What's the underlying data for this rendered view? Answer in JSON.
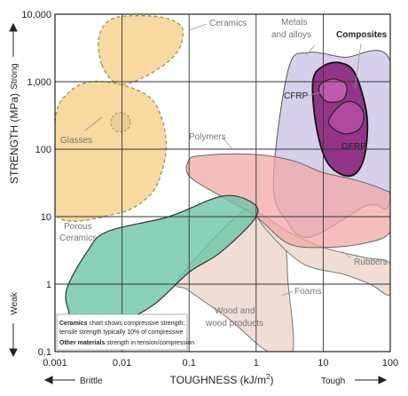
{
  "chart_data": {
    "type": "area",
    "title": "",
    "xlabel": "TOUGHNESS (kJ/m²)",
    "xlabel_main": "TOUGHNESS (kJ/m",
    "xlabel_sup": "2",
    "xlabel_end": ")",
    "ylabel": "STRENGTH (MPa)",
    "x_scale": "log",
    "y_scale": "log",
    "xlim": [
      0.001,
      100
    ],
    "ylim": [
      0.1,
      10000
    ],
    "grid": true,
    "x_ticks": [
      "0.001",
      "0.01",
      "0.1",
      "1",
      "10",
      "100"
    ],
    "y_ticks": [
      "0.1",
      "1",
      "10",
      "100",
      "1,000",
      "10,000"
    ],
    "x_extremes": {
      "low": "Brittle",
      "high": "Tough"
    },
    "y_extremes": {
      "low": "Weak",
      "high": "Strong"
    },
    "regions": [
      {
        "label": "Ceramics",
        "color": "#f8d9a0",
        "outline": "dashed",
        "points": [
          [
            0.005,
            1800
          ],
          [
            0.0045,
            4500
          ],
          [
            0.007,
            8500
          ],
          [
            0.02,
            9500
          ],
          [
            0.05,
            8500
          ],
          [
            0.08,
            6000
          ],
          [
            0.07,
            3000
          ],
          [
            0.04,
            1700
          ],
          [
            0.015,
            1000
          ],
          [
            0.008,
            950
          ]
        ]
      },
      {
        "label": "Glasses",
        "color": "#f8d9a0",
        "outline": "dashed",
        "points": [
          [
            0.001,
            11
          ],
          [
            0.001,
            250
          ],
          [
            0.0015,
            650
          ],
          [
            0.0035,
            1000
          ],
          [
            0.012,
            850
          ],
          [
            0.03,
            500
          ],
          [
            0.045,
            150
          ],
          [
            0.04,
            50
          ],
          [
            0.025,
            20
          ],
          [
            0.008,
            11
          ]
        ]
      },
      {
        "label": "Porous Ceramics",
        "color": "#f8d9a0",
        "outline": "dashed",
        "points": []
      },
      {
        "label": "Metals and alloys",
        "color": "#cfc8e6",
        "outline": "solid",
        "points": [
          [
            1.8,
            30
          ],
          [
            3,
            1500
          ],
          [
            6,
            2700
          ],
          [
            20,
            2300
          ],
          [
            100,
            2000
          ],
          [
            100,
            20
          ],
          [
            60,
            15
          ],
          [
            40,
            14
          ],
          [
            10,
            6
          ],
          [
            5,
            5
          ],
          [
            3,
            8
          ]
        ]
      },
      {
        "label": "Composites",
        "color": "#8e2b83",
        "outline": "solid",
        "points": [
          [
            7,
            1000
          ],
          [
            10,
            1700
          ],
          [
            18,
            1900
          ],
          [
            30,
            1300
          ],
          [
            45,
            300
          ],
          [
            40,
            70
          ],
          [
            25,
            40
          ],
          [
            12,
            60
          ],
          [
            8,
            200
          ]
        ]
      },
      {
        "label": "CFRP",
        "color": "#c05ab0",
        "outline": "solid",
        "points": [
          [
            9,
            900
          ],
          [
            14,
            1100
          ],
          [
            22,
            900
          ],
          [
            20,
            550
          ],
          [
            12,
            500
          ],
          [
            9,
            650
          ]
        ]
      },
      {
        "label": "GFRP",
        "color": "#b04aa0",
        "outline": "solid",
        "points": [
          [
            12,
            250
          ],
          [
            18,
            450
          ],
          [
            28,
            500
          ],
          [
            40,
            350
          ],
          [
            35,
            200
          ],
          [
            20,
            170
          ]
        ]
      },
      {
        "label": "Polymers",
        "color": "#f2a8a5",
        "outline": "solid",
        "points": [
          [
            0.1,
            40
          ],
          [
            0.1,
            70
          ],
          [
            0.15,
            80
          ],
          [
            0.5,
            85
          ],
          [
            1.5,
            80
          ],
          [
            4,
            65
          ],
          [
            10,
            45
          ],
          [
            30,
            35
          ],
          [
            80,
            25
          ],
          [
            100,
            20
          ],
          [
            100,
            6
          ],
          [
            40,
            4
          ],
          [
            10,
            3.5
          ],
          [
            3,
            4
          ],
          [
            1,
            10
          ],
          [
            0.3,
            20
          ]
        ]
      },
      {
        "label": "Rubbers",
        "color": "#f0ddd4",
        "outline": "solid",
        "points": [
          [
            1,
            12
          ],
          [
            3,
            6
          ],
          [
            10,
            3.5
          ],
          [
            40,
            2.5
          ],
          [
            100,
            2
          ],
          [
            100,
            0.7
          ],
          [
            50,
            1
          ],
          [
            20,
            1.4
          ],
          [
            5,
            2
          ],
          [
            1.5,
            6
          ]
        ]
      },
      {
        "label": "Foams",
        "color": "#f0ddd4",
        "outline": "solid",
        "points": [
          [
            0.07,
            1.2
          ],
          [
            0.5,
            10
          ],
          [
            1,
            12
          ],
          [
            2.5,
            5
          ],
          [
            3,
            1
          ],
          [
            3.5,
            0.1
          ],
          [
            1.5,
            0.1
          ],
          [
            0.4,
            0.3
          ],
          [
            0.1,
            0.8
          ]
        ]
      },
      {
        "label": "Wood and wood products",
        "color": "#6cc5a6",
        "outline": "solid",
        "points": [
          [
            0.0015,
            0.85
          ],
          [
            0.0016,
            0.4
          ],
          [
            0.002,
            0.3
          ],
          [
            0.01,
            0.3
          ],
          [
            0.03,
            0.5
          ],
          [
            0.1,
            1.5
          ],
          [
            0.3,
            3
          ],
          [
            1,
            10
          ],
          [
            0.8,
            17
          ],
          [
            0.3,
            20
          ],
          [
            0.05,
            10
          ],
          [
            0.006,
            6
          ],
          [
            0.003,
            3
          ]
        ]
      }
    ],
    "annotation": {
      "line1_bold": "Ceramics",
      "line1": " chart shows compressive strength;",
      "line2": "tensile strength typically 10% of compressive",
      "line3_bold": "Other materials",
      "line3": " strength in tension/compression"
    }
  }
}
